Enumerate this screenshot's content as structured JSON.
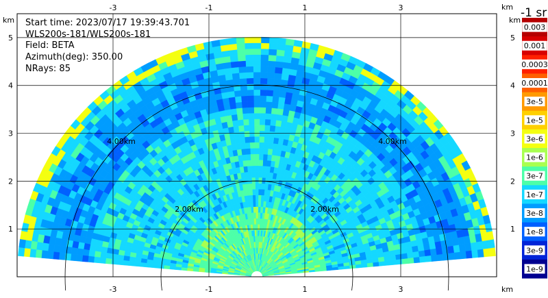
{
  "info": {
    "start_time": "Start time: 2023/07/17 19:39:43.701",
    "instrument": "WLS200s-181/WLS200s-181",
    "field": "Field: BETA",
    "azimuth": "Azimuth(deg): 350.00",
    "nrays": "NRays: 85"
  },
  "chart_data": {
    "type": "heatmap",
    "projection": "RHI",
    "axes": {
      "x_ticks": [
        -3,
        -1,
        1,
        3
      ],
      "y_ticks": [
        1,
        2,
        3,
        4,
        5
      ],
      "x_unit": "km",
      "y_unit": "km",
      "xlim": [
        -5,
        5
      ],
      "ylim": [
        0,
        5.5
      ],
      "grid": true
    },
    "range_rings": [
      {
        "range_km": 2,
        "label": "2.00km"
      },
      {
        "range_km": 4,
        "label": "4.00km"
      }
    ],
    "field": "BETA",
    "azimuth_deg": 350.0,
    "nrays": 85,
    "data_extent_km": 5.0,
    "colorbar": {
      "title": "-1 sr",
      "scale": "log",
      "labels": [
        "0.003",
        "0.001",
        "0.0003",
        "0.0001",
        "3e-5",
        "1e-5",
        "3e-6",
        "1e-6",
        "3e-7",
        "1e-7",
        "3e-8",
        "1e-8",
        "3e-9",
        "1e-9"
      ],
      "colors": [
        "#b50000",
        "#d80000",
        "#ff2000",
        "#ff6000",
        "#ff9a00",
        "#ffd000",
        "#f4ff10",
        "#a8ff50",
        "#4cffa8",
        "#14d8ff",
        "#009cff",
        "#0060ff",
        "#0024d8",
        "#000090"
      ]
    },
    "typical_value_by_range": [
      {
        "range_km": 0.5,
        "value": "3e-7"
      },
      {
        "range_km": 2.0,
        "value": "1e-7"
      },
      {
        "range_km": 4.0,
        "value": "3e-8"
      },
      {
        "range_km": 5.0,
        "value": "1e-7"
      }
    ]
  }
}
